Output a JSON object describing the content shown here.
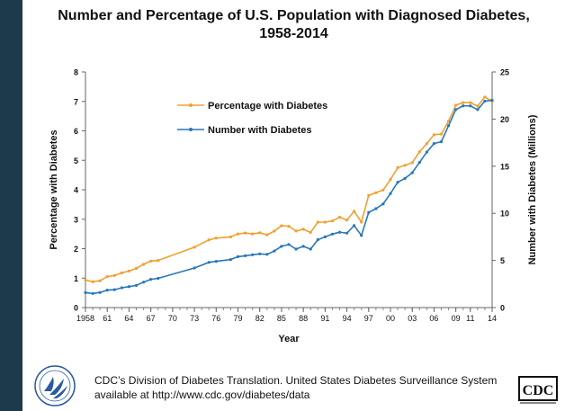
{
  "chart_data": {
    "type": "line",
    "title_line1": "Number and Percentage of U.S. Population with Diagnosed Diabetes,",
    "title_line2": "1958-2014",
    "xlabel": "Year",
    "ylabel_left": "Percentage with Diabetes",
    "ylabel_right": "Number with Diabetes (Millions)",
    "xlim": [
      1958,
      2014
    ],
    "ylim_left": [
      0,
      8
    ],
    "ylim_right": [
      0,
      25
    ],
    "y_ticks_left": [
      "0",
      "1",
      "2",
      "3",
      "4",
      "5",
      "6",
      "7",
      "8"
    ],
    "y_ticks_right": [
      "0",
      "5",
      "10",
      "15",
      "20",
      "25"
    ],
    "x_tick_labels": [
      "1958",
      "61",
      "64",
      "67",
      "70",
      "73",
      "76",
      "79",
      "82",
      "85",
      "88",
      "91",
      "94",
      "97",
      "00",
      "03",
      "06",
      "09",
      "11",
      "14"
    ],
    "x_tick_values": [
      1958,
      1961,
      1964,
      1967,
      1970,
      1973,
      1976,
      1979,
      1982,
      1985,
      1988,
      1991,
      1994,
      1997,
      2000,
      2003,
      2006,
      2009,
      2011,
      2014
    ],
    "grid": false,
    "legend_position": "top-left",
    "series": [
      {
        "name": "Percentage with Diabetes",
        "axis": "left",
        "color": "#f0a030",
        "x": [
          1958,
          1959,
          1960,
          1961,
          1962,
          1963,
          1964,
          1965,
          1966,
          1967,
          1968,
          1973,
          1975,
          1976,
          1978,
          1979,
          1980,
          1981,
          1982,
          1983,
          1984,
          1985,
          1986,
          1987,
          1988,
          1989,
          1990,
          1991,
          1992,
          1993,
          1994,
          1995,
          1996,
          1997,
          1998,
          1999,
          2000,
          2001,
          2002,
          2003,
          2004,
          2005,
          2006,
          2007,
          2008,
          2009,
          2010,
          2011,
          2012,
          2013,
          2014
        ],
        "values": [
          0.93,
          0.88,
          0.91,
          1.05,
          1.09,
          1.18,
          1.24,
          1.33,
          1.47,
          1.58,
          1.6,
          2.05,
          2.3,
          2.36,
          2.4,
          2.5,
          2.53,
          2.5,
          2.54,
          2.47,
          2.6,
          2.78,
          2.76,
          2.6,
          2.66,
          2.55,
          2.9,
          2.9,
          2.94,
          3.07,
          2.97,
          3.27,
          2.9,
          3.81,
          3.9,
          3.99,
          4.35,
          4.75,
          4.83,
          4.92,
          5.29,
          5.57,
          5.87,
          5.89,
          6.33,
          6.87,
          6.96,
          6.96,
          6.84,
          7.15,
          7.0
        ]
      },
      {
        "name": "Number with Diabetes",
        "axis": "right",
        "color": "#2877b8",
        "x": [
          1958,
          1959,
          1960,
          1961,
          1962,
          1963,
          1964,
          1965,
          1966,
          1967,
          1968,
          1973,
          1975,
          1976,
          1978,
          1979,
          1980,
          1981,
          1982,
          1983,
          1984,
          1985,
          1986,
          1987,
          1988,
          1989,
          1990,
          1991,
          1992,
          1993,
          1994,
          1995,
          1996,
          1997,
          1998,
          1999,
          2000,
          2001,
          2002,
          2003,
          2004,
          2005,
          2006,
          2007,
          2008,
          2009,
          2010,
          2011,
          2012,
          2013,
          2014
        ],
        "values": [
          1.58,
          1.5,
          1.6,
          1.85,
          1.9,
          2.1,
          2.22,
          2.35,
          2.7,
          3.0,
          3.1,
          4.2,
          4.8,
          4.9,
          5.1,
          5.4,
          5.5,
          5.6,
          5.7,
          5.65,
          6.0,
          6.5,
          6.7,
          6.2,
          6.5,
          6.2,
          7.2,
          7.5,
          7.8,
          8.0,
          7.9,
          8.7,
          7.65,
          10.1,
          10.5,
          11.0,
          12.1,
          13.3,
          13.7,
          14.3,
          15.4,
          16.5,
          17.4,
          17.6,
          19.3,
          21.0,
          21.4,
          21.4,
          21.0,
          21.9,
          22.0
        ]
      }
    ]
  },
  "footer": {
    "line1": "CDC’s Division of Diabetes Translation. United States Diabetes Surveillance System",
    "line2": "available at http://www.cdc.gov/diabetes/data",
    "cdc_logo_text": "CDC"
  },
  "logos": {
    "left": "hhs-eagle-logo",
    "right": "cdc-logo"
  }
}
